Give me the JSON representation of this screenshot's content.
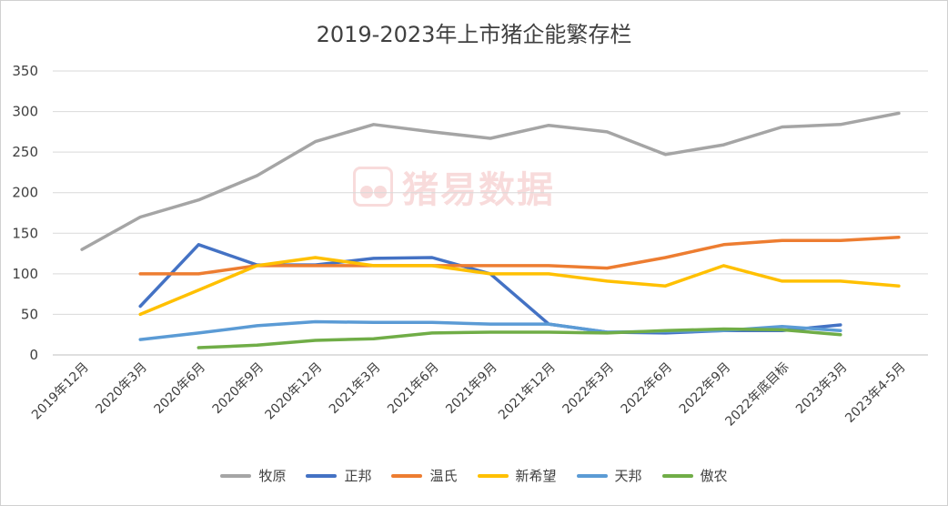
{
  "chart_data": {
    "type": "line",
    "title": "2019-2023年上市猪企能繁存栏",
    "xlabel": "",
    "ylabel": "",
    "ylim": [
      0,
      350
    ],
    "yticks": [
      0,
      50,
      100,
      150,
      200,
      250,
      300,
      350
    ],
    "grid": true,
    "legend_position": "bottom",
    "categories": [
      "2019年12月",
      "2020年3月",
      "2020年6月",
      "2020年9月",
      "2020年12月",
      "2021年3月",
      "2021年6月",
      "2021年9月",
      "2021年12月",
      "2022年3月",
      "2022年6月",
      "2022年9月",
      "2022年底目标",
      "2023年3月",
      "2023年4-5月"
    ],
    "series": [
      {
        "name": "牧原",
        "color": "#a5a5a5",
        "values": [
          130,
          170,
          191,
          221,
          263,
          284,
          275,
          267,
          283,
          275,
          247,
          259,
          281,
          284,
          298
        ]
      },
      {
        "name": "正邦",
        "color": "#4472c4",
        "values": [
          null,
          60,
          136,
          111,
          111,
          119,
          120,
          100,
          38,
          28,
          27,
          30,
          30,
          37,
          null
        ]
      },
      {
        "name": "温氏",
        "color": "#ed7d31",
        "values": [
          null,
          100,
          100,
          110,
          110,
          110,
          110,
          110,
          110,
          107,
          120,
          136,
          141,
          141,
          145
        ]
      },
      {
        "name": "新希望",
        "color": "#ffc000",
        "values": [
          null,
          50,
          80,
          110,
          120,
          110,
          110,
          100,
          100,
          91,
          85,
          110,
          91,
          91,
          85
        ]
      },
      {
        "name": "天邦",
        "color": "#5b9bd5",
        "values": [
          null,
          19,
          27,
          36,
          41,
          40,
          40,
          38,
          38,
          28,
          29,
          30,
          35,
          30,
          null
        ]
      },
      {
        "name": "傲农",
        "color": "#70ad47",
        "values": [
          null,
          null,
          9,
          12,
          18,
          20,
          27,
          28,
          28,
          27,
          30,
          32,
          31,
          25,
          null
        ]
      }
    ]
  },
  "watermark": {
    "text": "猪易数据",
    "color": "#e06060"
  },
  "colors": {
    "grid": "#d9d9d9",
    "text": "#404040",
    "axis": "#bfbfbf"
  }
}
